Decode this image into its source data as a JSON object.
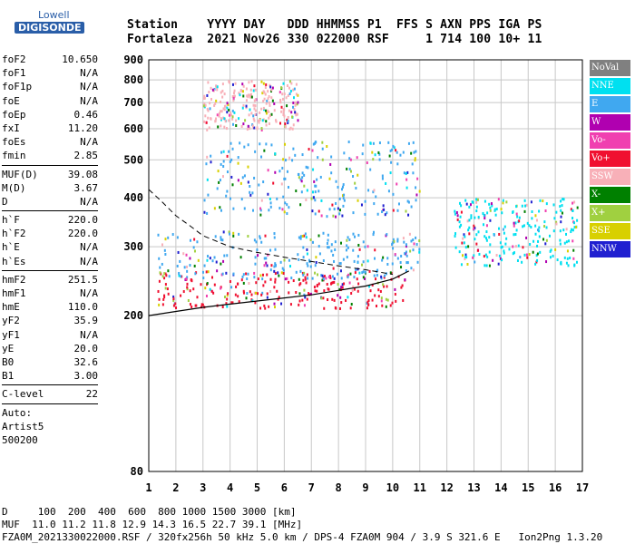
{
  "logo": {
    "line1": "Lowell",
    "line2": "DIGISONDE"
  },
  "header": {
    "labels": "Station    YYYY DAY   DDD HHMMSS P1  FFS S AXN PPS IGA PS",
    "values": "Fortaleza  2021 Nov26 330 022000 RSF     1 714 100 10+ 11"
  },
  "params_group1": [
    {
      "key": "foF2",
      "value": "10.650"
    },
    {
      "key": "foF1",
      "value": "N/A"
    },
    {
      "key": "foF1p",
      "value": "N/A"
    },
    {
      "key": "foE",
      "value": "N/A"
    },
    {
      "key": "foEp",
      "value": "0.46"
    },
    {
      "key": "fxI",
      "value": "11.20"
    },
    {
      "key": "foEs",
      "value": "N/A"
    },
    {
      "key": "fmin",
      "value": "2.85"
    }
  ],
  "params_group2": [
    {
      "key": "MUF(D)",
      "value": "39.08"
    },
    {
      "key": "M(D)",
      "value": "3.67"
    },
    {
      "key": "D",
      "value": "N/A"
    }
  ],
  "params_group3": [
    {
      "key": "h`F",
      "value": "220.0"
    },
    {
      "key": "h`F2",
      "value": "220.0"
    },
    {
      "key": "h`E",
      "value": "N/A"
    },
    {
      "key": "h`Es",
      "value": "N/A"
    }
  ],
  "params_group4": [
    {
      "key": "hmF2",
      "value": "251.5"
    },
    {
      "key": "hmF1",
      "value": "N/A"
    },
    {
      "key": "hmE",
      "value": "110.0"
    },
    {
      "key": "yF2",
      "value": "35.9"
    },
    {
      "key": "yF1",
      "value": "N/A"
    },
    {
      "key": "yE",
      "value": "20.0"
    },
    {
      "key": "B0",
      "value": "32.6"
    },
    {
      "key": "B1",
      "value": "3.00"
    }
  ],
  "params_group5": [
    {
      "key": "C-level",
      "value": "22"
    }
  ],
  "auto": {
    "line1": "Auto:",
    "line2": "Artist5",
    "line3": "500200"
  },
  "legend": [
    {
      "label": "NoVal",
      "color": "#808080"
    },
    {
      "label": "NNE",
      "color": "#00e0f0"
    },
    {
      "label": "E",
      "color": "#40a8f0"
    },
    {
      "label": "W",
      "color": "#b000b0"
    },
    {
      "label": "Vo-",
      "color": "#f040b0"
    },
    {
      "label": "Vo+",
      "color": "#f01030"
    },
    {
      "label": "SSW",
      "color": "#f8b0b8"
    },
    {
      "label": "X-",
      "color": "#008000"
    },
    {
      "label": "X+",
      "color": "#a0d040"
    },
    {
      "label": "SSE",
      "color": "#d8d000"
    },
    {
      "label": "NNW",
      "color": "#2020d0"
    }
  ],
  "footer": {
    "line1": "D     100  200  400  600  800 1000 1500 3000 [km]",
    "line2": "MUF  11.0 11.2 11.8 12.9 14.3 16.5 22.7 39.1 [MHz]",
    "line3": "FZA0M_2021330022000.RSF / 320fx256h 50 kHz 5.0 km / DPS-4 FZA0M 904 / 3.9 S 321.6 E   Ion2Png 1.3.20"
  },
  "chart_data": {
    "type": "scatter",
    "title": "",
    "xlabel": "",
    "ylabel": "",
    "x_ticks": [
      1,
      2,
      3,
      4,
      5,
      6,
      7,
      8,
      9,
      10,
      11,
      12,
      13,
      14,
      15,
      16,
      17
    ],
    "y_ticks": [
      80,
      200,
      300,
      400,
      500,
      600,
      700,
      800,
      900
    ],
    "y_scale": "log",
    "xlim": [
      1,
      17
    ],
    "ylim": [
      80,
      900
    ],
    "grid": true,
    "clusters": [
      {
        "name": "F trace low",
        "color": "#f01030",
        "x": [
          1.3,
          10.5
        ],
        "y": [
          210,
          260
        ]
      },
      {
        "name": "F trace main",
        "color": "#40a8f0",
        "x": [
          1.3,
          11.0
        ],
        "y": [
          250,
          330
        ]
      },
      {
        "name": "Multihop",
        "color": "#40a8f0",
        "x": [
          3.0,
          11.0
        ],
        "y": [
          360,
          560
        ]
      },
      {
        "name": "Spread F",
        "color": "#00e0f0",
        "x": [
          12.2,
          16.8
        ],
        "y": [
          270,
          400
        ]
      },
      {
        "name": "Oblique",
        "color": "#f8b0b8",
        "x": [
          3.0,
          6.5
        ],
        "y": [
          600,
          800
        ]
      }
    ],
    "profile_dashed": {
      "x": [
        1.0,
        1.5,
        2.0,
        2.5,
        3.0,
        4.0,
        5.0,
        6.0,
        7.0,
        8.0,
        9.0,
        10.0
      ],
      "y": [
        420,
        390,
        360,
        340,
        320,
        300,
        290,
        282,
        275,
        268,
        262,
        255
      ]
    },
    "profile_solid": {
      "x": [
        1.0,
        2.0,
        3.0,
        4.0,
        5.0,
        6.0,
        7.0,
        8.0,
        9.0,
        10.0,
        10.6
      ],
      "y": [
        200,
        205,
        210,
        214,
        218,
        222,
        226,
        232,
        238,
        248,
        260
      ]
    }
  }
}
